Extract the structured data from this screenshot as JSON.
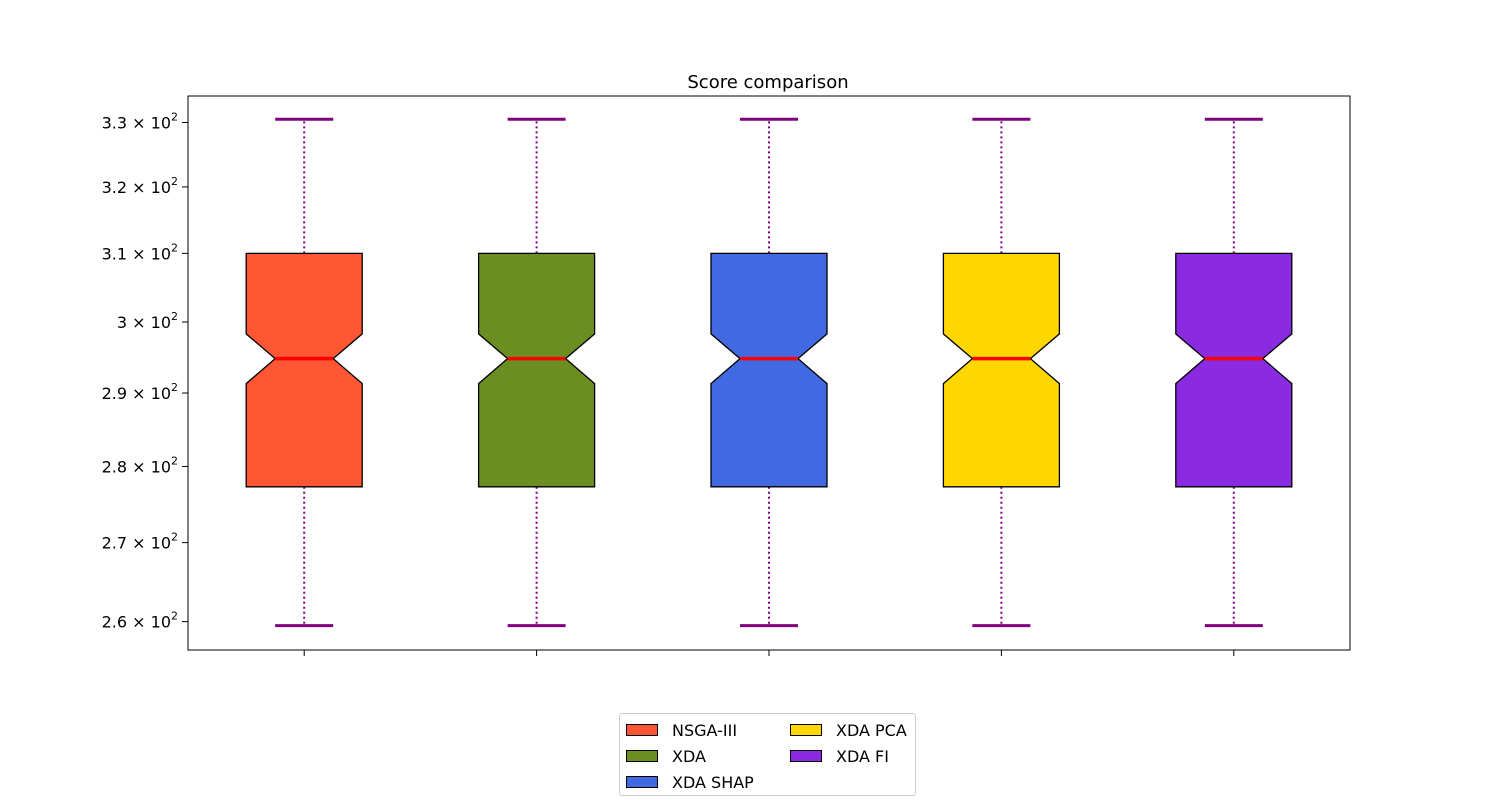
{
  "chart_data": {
    "type": "boxplot",
    "title": "Score comparison",
    "xlabel": "",
    "ylabel": "",
    "yscale": "log",
    "ylim": [
      256.5,
      334.2
    ],
    "yticks": [
      260,
      270,
      280,
      290,
      300,
      310,
      320,
      330
    ],
    "ytick_labels": [
      {
        "mantissa": "2.6",
        "base": "10",
        "exp": "2"
      },
      {
        "mantissa": "2.7",
        "base": "10",
        "exp": "2"
      },
      {
        "mantissa": "2.8",
        "base": "10",
        "exp": "2"
      },
      {
        "mantissa": "2.9",
        "base": "10",
        "exp": "2"
      },
      {
        "mantissa": "3",
        "base": "10",
        "exp": "2"
      },
      {
        "mantissa": "3.1",
        "base": "10",
        "exp": "2"
      },
      {
        "mantissa": "3.2",
        "base": "10",
        "exp": "2"
      },
      {
        "mantissa": "3.3",
        "base": "10",
        "exp": "2"
      }
    ],
    "notched": true,
    "grid": false,
    "legend_position": "bottom-center",
    "series": [
      {
        "name": "NSGA-III",
        "color": "#FF5733",
        "whisker_low": 259.5,
        "q1": 277.3,
        "notch_low": 291.3,
        "median": 294.8,
        "notch_high": 298.3,
        "q3": 310.0,
        "whisker_high": 330.5
      },
      {
        "name": "XDA",
        "color": "#6B8E23",
        "whisker_low": 259.5,
        "q1": 277.3,
        "notch_low": 291.3,
        "median": 294.8,
        "notch_high": 298.3,
        "q3": 310.0,
        "whisker_high": 330.5
      },
      {
        "name": "XDA SHAP",
        "color": "#4169E1",
        "whisker_low": 259.5,
        "q1": 277.3,
        "notch_low": 291.3,
        "median": 294.8,
        "notch_high": 298.3,
        "q3": 310.0,
        "whisker_high": 330.5
      },
      {
        "name": "XDA PCA",
        "color": "#FFD700",
        "whisker_low": 259.5,
        "q1": 277.3,
        "notch_low": 291.3,
        "median": 294.8,
        "notch_high": 298.3,
        "q3": 310.0,
        "whisker_high": 330.5
      },
      {
        "name": "XDA FI",
        "color": "#8A2BE2",
        "whisker_low": 259.5,
        "q1": 277.3,
        "notch_low": 291.3,
        "median": 294.8,
        "notch_high": 298.3,
        "q3": 310.0,
        "whisker_high": 330.5
      }
    ],
    "median_color": "#FF0000",
    "whisker_color": "#800080"
  }
}
